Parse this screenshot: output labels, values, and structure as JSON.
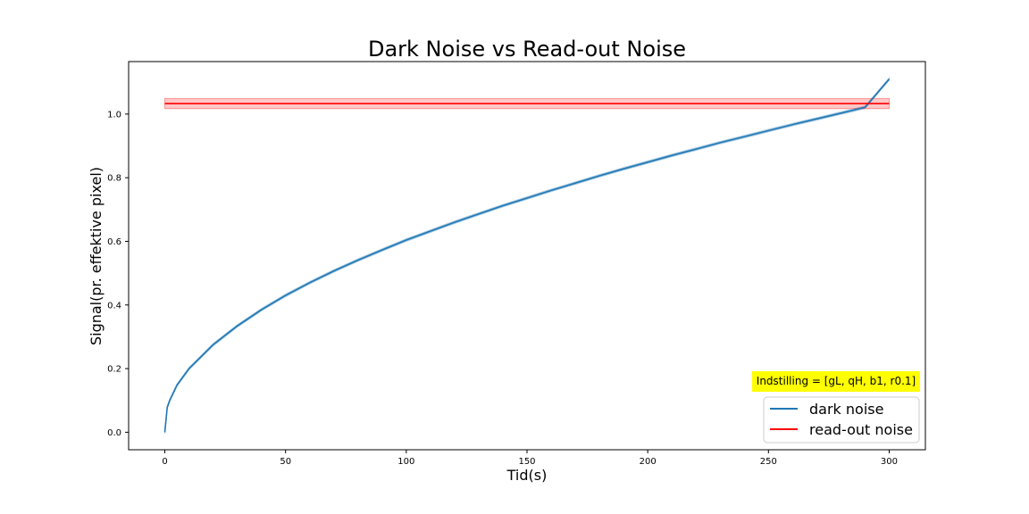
{
  "chart_data": {
    "type": "line",
    "title": "Dark Noise vs Read-out Noise",
    "xlabel": "Tid(s)",
    "ylabel": "Signal(pr. effektive pixel)",
    "xlim": [
      -15,
      315
    ],
    "ylim": [
      -0.055,
      1.165
    ],
    "xticks": [
      0,
      50,
      100,
      150,
      200,
      250,
      300
    ],
    "yticks": [
      0.0,
      0.2,
      0.4,
      0.6,
      0.8,
      1.0
    ],
    "grid": false,
    "legend_position": "bottom-right",
    "annotation": "Indstilling = [gL, qH, b1, r0.1]",
    "annotation_color": "#ffff00",
    "series": [
      {
        "name": "dark noise",
        "color": "#1f77b4",
        "x": [
          0,
          1,
          2,
          5,
          10,
          20,
          30,
          40,
          50,
          60,
          70,
          80,
          90,
          100,
          110,
          120,
          130,
          140,
          150,
          160,
          170,
          180,
          190,
          200,
          210,
          220,
          230,
          240,
          250,
          260,
          270,
          280,
          290,
          300
        ],
        "y": [
          0.0,
          0.078,
          0.1,
          0.148,
          0.2,
          0.275,
          0.334,
          0.385,
          0.43,
          0.47,
          0.507,
          0.541,
          0.573,
          0.604,
          0.632,
          0.66,
          0.686,
          0.712,
          0.736,
          0.76,
          0.783,
          0.806,
          0.828,
          0.849,
          0.87,
          0.89,
          0.91,
          0.929,
          0.948,
          0.967,
          0.985,
          1.003,
          1.021,
          1.11
        ],
        "band": 0.004
      },
      {
        "name": "read-out noise",
        "color": "#ff0000",
        "x": [
          0,
          300
        ],
        "y": [
          1.033,
          1.033
        ],
        "band": 0.016
      }
    ]
  }
}
